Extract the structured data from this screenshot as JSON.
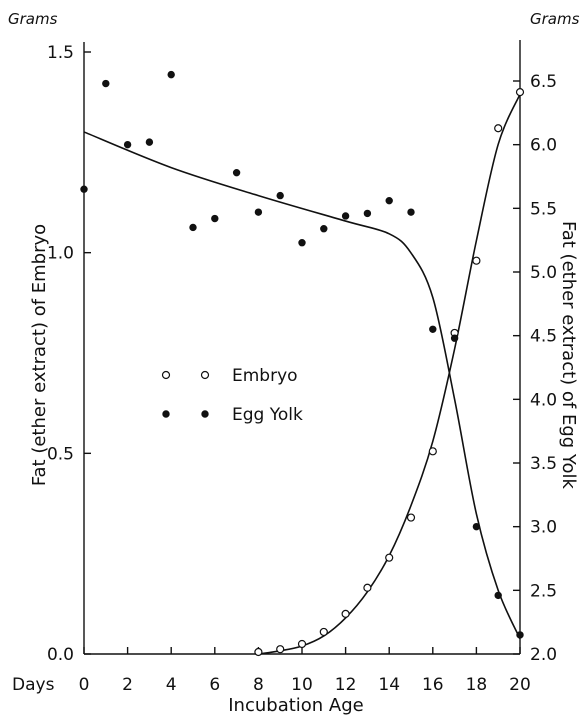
{
  "chart_data": {
    "type": "scatter",
    "x_label": "Incubation Age",
    "x_prefix": "Days",
    "x_ticks": [
      0,
      2,
      4,
      6,
      8,
      10,
      12,
      14,
      16,
      18,
      20
    ],
    "xlim": [
      0,
      20
    ],
    "left_axis": {
      "title": "Fat (ether extract) of Embryo",
      "unit": "Grams",
      "ticks": [
        "0.0",
        "0.5",
        "1.0",
        "1.5"
      ],
      "ylim": [
        0.0,
        1.5
      ]
    },
    "right_axis": {
      "title": "Fat (ether extract) of Egg Yolk",
      "unit": "Grams",
      "ticks": [
        "2.0",
        "2.5",
        "3.0",
        "3.5",
        "4.0",
        "4.5",
        "5.0",
        "5.5",
        "6.0",
        "6.5"
      ],
      "ylim": [
        2.0,
        6.5
      ]
    },
    "legend": [
      {
        "marker": "open-circle",
        "label": "Embryo"
      },
      {
        "marker": "filled-circle",
        "label": "Egg Yolk"
      }
    ],
    "series": [
      {
        "name": "Embryo",
        "axis": "left",
        "marker": "open-circle",
        "points": [
          [
            8,
            0.005
          ],
          [
            9,
            0.012
          ],
          [
            10,
            0.025
          ],
          [
            11,
            0.055
          ],
          [
            12,
            0.1
          ],
          [
            13,
            0.165
          ],
          [
            14,
            0.24
          ],
          [
            15,
            0.34
          ],
          [
            16,
            0.505
          ],
          [
            17,
            0.8
          ],
          [
            18,
            0.98
          ],
          [
            19,
            1.31
          ],
          [
            20,
            1.4
          ]
        ],
        "fit": [
          [
            8,
            0.0
          ],
          [
            9,
            0.008
          ],
          [
            10,
            0.02
          ],
          [
            11,
            0.045
          ],
          [
            12,
            0.09
          ],
          [
            13,
            0.155
          ],
          [
            14,
            0.245
          ],
          [
            15,
            0.37
          ],
          [
            16,
            0.53
          ],
          [
            17,
            0.76
          ],
          [
            18,
            1.03
          ],
          [
            19,
            1.27
          ],
          [
            20,
            1.395
          ]
        ]
      },
      {
        "name": "Egg Yolk",
        "axis": "right",
        "marker": "filled-circle",
        "points": [
          [
            0,
            5.65
          ],
          [
            1,
            6.48
          ],
          [
            2,
            6.0
          ],
          [
            3,
            6.02
          ],
          [
            4,
            6.55
          ],
          [
            5,
            5.35
          ],
          [
            6,
            5.42
          ],
          [
            7,
            5.78
          ],
          [
            8,
            5.47
          ],
          [
            9,
            5.6
          ],
          [
            10,
            5.23
          ],
          [
            11,
            5.34
          ],
          [
            12,
            5.44
          ],
          [
            13,
            5.46
          ],
          [
            14,
            5.56
          ],
          [
            15,
            5.47
          ],
          [
            16,
            4.55
          ],
          [
            17,
            4.48
          ],
          [
            18,
            3.0
          ],
          [
            19,
            2.46
          ],
          [
            20,
            2.15
          ]
        ],
        "fit": [
          [
            0,
            6.1
          ],
          [
            4,
            5.82
          ],
          [
            8,
            5.6
          ],
          [
            12,
            5.4
          ],
          [
            14,
            5.3
          ],
          [
            15,
            5.15
          ],
          [
            16,
            4.8
          ],
          [
            17,
            4.0
          ],
          [
            18,
            3.1
          ],
          [
            19,
            2.5
          ],
          [
            20,
            2.12
          ]
        ]
      }
    ],
    "grid": false
  }
}
